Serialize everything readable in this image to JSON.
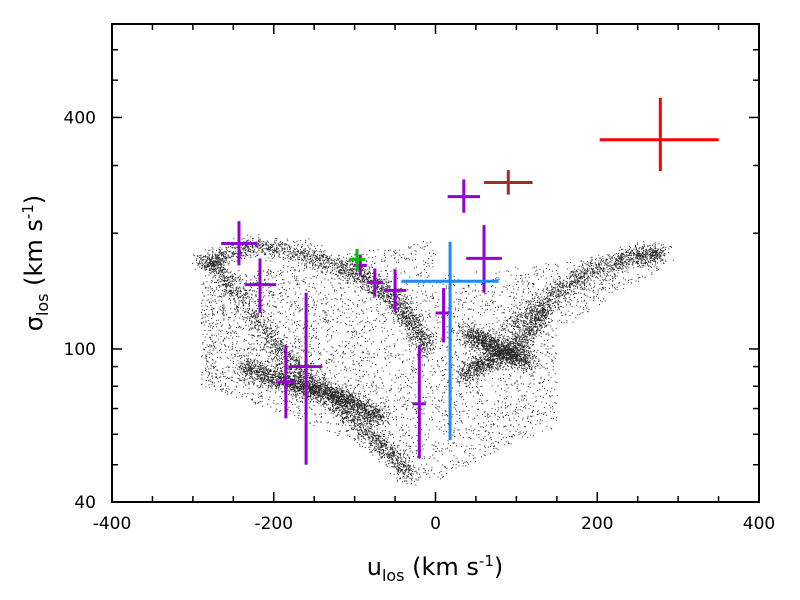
{
  "chart_data": {
    "type": "scatter",
    "title": "",
    "xlabel": {
      "main": "u",
      "sub": "los",
      "unit_prefix": " (km s",
      "unit_sup": "-1",
      "unit_suffix": ")"
    },
    "ylabel": {
      "main": "σ",
      "sub": "los",
      "unit_prefix": " (km s",
      "unit_sup": "-1",
      "unit_suffix": ")"
    },
    "xlim": [
      -400,
      400
    ],
    "ylim": [
      40,
      700
    ],
    "yscale": "log",
    "grid": false,
    "x_ticks": [
      {
        "value": -400,
        "label": "-400"
      },
      {
        "value": -200,
        "label": "-200"
      },
      {
        "value": 0,
        "label": "0"
      },
      {
        "value": 200,
        "label": "200"
      },
      {
        "value": 400,
        "label": "400"
      }
    ],
    "y_ticks": [
      {
        "value": 40,
        "label": "40"
      },
      {
        "value": 100,
        "label": "100"
      },
      {
        "value": 400,
        "label": "400"
      }
    ],
    "series": [
      {
        "color": "#9400d3",
        "points": [
          {
            "x": -243,
            "y": 188,
            "xerr": [
              22,
              23
            ],
            "yerr": [
              23,
              27
            ]
          },
          {
            "x": -217,
            "y": 147,
            "xerr": [
              19,
              20
            ],
            "yerr": [
              23,
              25
            ]
          },
          {
            "x": -93,
            "y": 165,
            "xerr": [
              8,
              8
            ],
            "yerr": [
              10,
              11
            ]
          },
          {
            "x": -75,
            "y": 149,
            "xerr": [
              10,
              10
            ],
            "yerr": [
              12,
              13
            ]
          },
          {
            "x": -50,
            "y": 142,
            "xerr": [
              14,
              14
            ],
            "yerr": [
              17,
              19
            ]
          },
          {
            "x": -185,
            "y": 82,
            "xerr": [
              12,
              12
            ],
            "yerr": [
              16,
              20
            ]
          },
          {
            "x": -160,
            "y": 90,
            "xerr": [
              20,
              20
            ],
            "yerr": [
              40,
              50
            ]
          },
          {
            "x": -20,
            "y": 72,
            "xerr": [
              8,
              8
            ],
            "yerr": [
              20,
              30
            ]
          },
          {
            "x": 10,
            "y": 124,
            "xerr": [
              10,
              10
            ],
            "yerr": [
              20,
              20
            ]
          },
          {
            "x": 35,
            "y": 249,
            "xerr": [
              20,
              20
            ],
            "yerr": [
              23,
              27
            ]
          },
          {
            "x": 60,
            "y": 172,
            "xerr": [
              22,
              22
            ],
            "yerr": [
              32,
              38
            ]
          }
        ]
      },
      {
        "color": "#00c000",
        "points": [
          {
            "x": -97,
            "y": 171,
            "xerr": [
              10,
              10
            ],
            "yerr": [
              11,
              11
            ]
          }
        ]
      },
      {
        "color": "#1e88ff",
        "points": [
          {
            "x": 18,
            "y": 150,
            "xerr": [
              60,
              60
            ],
            "yerr": [
              92,
              40
            ]
          }
        ]
      },
      {
        "color": "#a52a2a",
        "points": [
          {
            "x": 90,
            "y": 271,
            "xerr": [
              30,
              30
            ],
            "yerr": [
              19,
              21
            ]
          }
        ]
      },
      {
        "color": "#ff0000",
        "points": [
          {
            "x": 278,
            "y": 350,
            "xerr": [
              75,
              72
            ],
            "yerr": [
              60,
              100
            ]
          }
        ]
      }
    ],
    "background_scatter": {
      "color": "#000000",
      "description_source": "dense cloud of simulated particles",
      "arms": [
        {
          "x": [
            -285,
            -270,
            -240,
            -210,
            -185,
            -160,
            -130,
            -100,
            -75,
            -50,
            -30
          ],
          "y": [
            172,
            160,
            135,
            110,
            95,
            85,
            74,
            65,
            58,
            52,
            46
          ]
        },
        {
          "x": [
            -240,
            -200,
            -165,
            -130,
            -100,
            -70
          ],
          "y": [
            90,
            84,
            80,
            77,
            72,
            66
          ]
        },
        {
          "x": [
            -280,
            -230,
            -170,
            -120,
            -80,
            -50,
            -30,
            -10
          ],
          "y": [
            168,
            186,
            180,
            165,
            150,
            135,
            118,
            100
          ]
        },
        {
          "x": [
            30,
            60,
            90,
            115,
            140
          ],
          "y": [
            85,
            92,
            98,
            110,
            130
          ]
        },
        {
          "x": [
            40,
            80,
            115
          ],
          "y": [
            110,
            100,
            92
          ]
        },
        {
          "x": [
            90,
            150,
            200,
            250,
            280
          ],
          "y": [
            115,
            140,
            162,
            176,
            178
          ]
        }
      ],
      "region": {
        "x": [
          -290,
          285
        ],
        "y": [
          40,
          200
        ]
      }
    }
  }
}
